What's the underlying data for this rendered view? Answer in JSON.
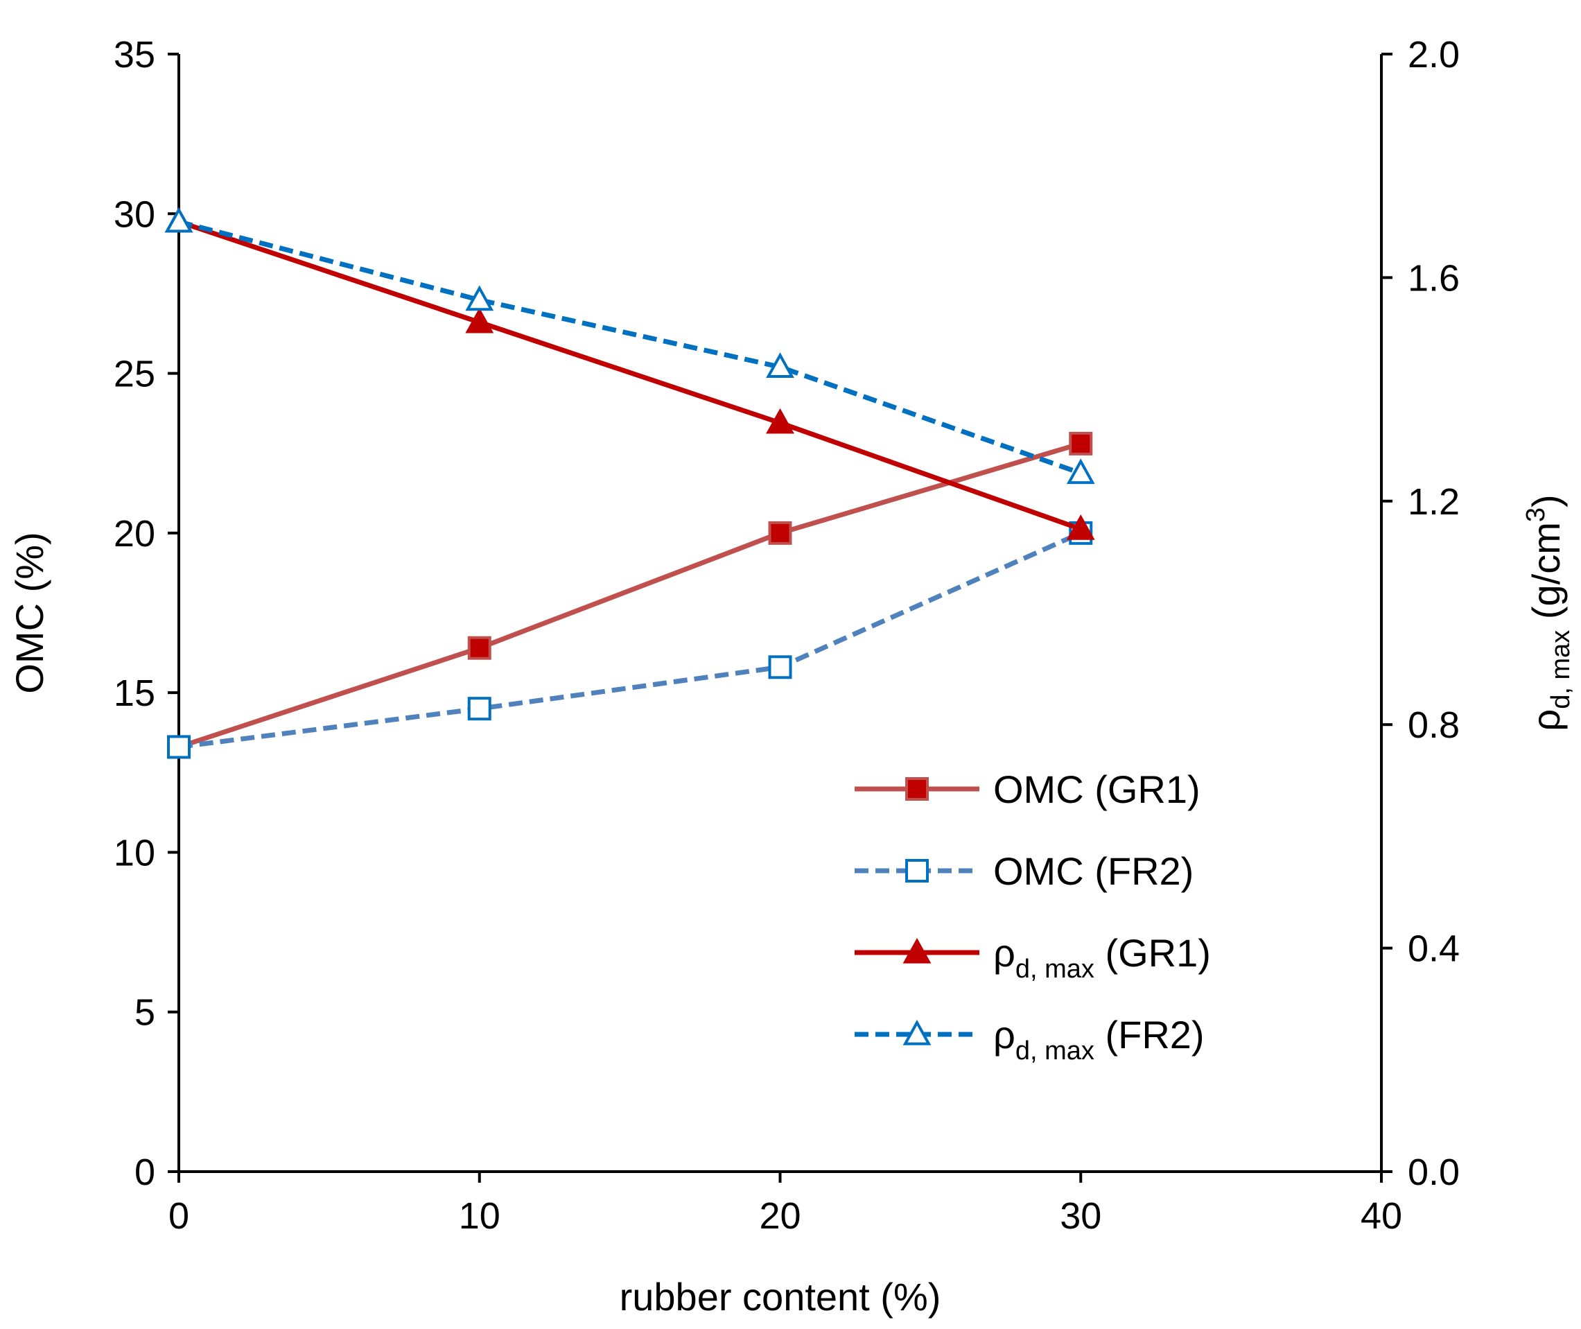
{
  "chart_data": {
    "type": "line",
    "x_axis": {
      "label": "rubber content (%)",
      "range": [
        0,
        40
      ],
      "ticks": [
        0,
        10,
        20,
        30,
        40
      ],
      "tick_labels": [
        "0",
        "10",
        "20",
        "30",
        "40"
      ]
    },
    "y_axis_left": {
      "label": "OMC (%)",
      "range": [
        0,
        35
      ],
      "ticks": [
        0,
        5,
        10,
        15,
        20,
        25,
        30,
        35
      ],
      "tick_labels": [
        "0",
        "5",
        "10",
        "15",
        "20",
        "25",
        "30",
        "35"
      ]
    },
    "y_axis_right": {
      "label_symbol": "ρ",
      "label_sub": "d, max",
      "label_unit_pre": " (g/cm",
      "label_unit_sup": "3",
      "label_unit_post": ")",
      "range": [
        0,
        2.0
      ],
      "ticks": [
        0,
        0.4,
        0.8,
        1.2,
        1.6,
        2.0
      ],
      "tick_labels": [
        "0.0",
        "0.4",
        "0.8",
        "1.2",
        "1.6",
        "2.0"
      ]
    },
    "grid": false,
    "legend_position": "bottom-right",
    "series": [
      {
        "name": "OMC (GR1)",
        "name_symbol": "",
        "name_sub": "",
        "name_rest": "OMC (GR1)",
        "axis": "left",
        "x": [
          0,
          10,
          20,
          30
        ],
        "y": [
          13.3,
          16.4,
          20.0,
          22.8
        ],
        "color": "#c0504d",
        "marker_fill": "#c00000",
        "marker": "square",
        "dashed": false
      },
      {
        "name": "OMC (FR2)",
        "name_symbol": "",
        "name_sub": "",
        "name_rest": "OMC (FR2)",
        "axis": "left",
        "x": [
          0,
          10,
          20,
          30
        ],
        "y": [
          13.3,
          14.5,
          15.8,
          20.0
        ],
        "color": "#4f81bd",
        "marker_stroke": "#0070c0",
        "marker_fill": "#ffffff",
        "marker": "square",
        "dashed": true
      },
      {
        "name": "ρd, max (GR1)",
        "name_symbol": "ρ",
        "name_sub": "d, max",
        "name_rest": " (GR1)",
        "axis": "right",
        "x": [
          0,
          10,
          20,
          30
        ],
        "y": [
          1.7,
          1.52,
          1.34,
          1.15
        ],
        "color": "#c00000",
        "marker_fill": "#c00000",
        "marker": "triangle",
        "dashed": false
      },
      {
        "name": "ρd, max (FR2)",
        "name_symbol": "ρ",
        "name_sub": "d, max",
        "name_rest": " (FR2)",
        "axis": "right",
        "x": [
          0,
          10,
          20,
          30
        ],
        "y": [
          1.7,
          1.56,
          1.44,
          1.25
        ],
        "color": "#0070c0",
        "marker_stroke": "#0070c0",
        "marker_fill": "#ffffff",
        "marker": "triangle",
        "dashed": true
      }
    ]
  }
}
